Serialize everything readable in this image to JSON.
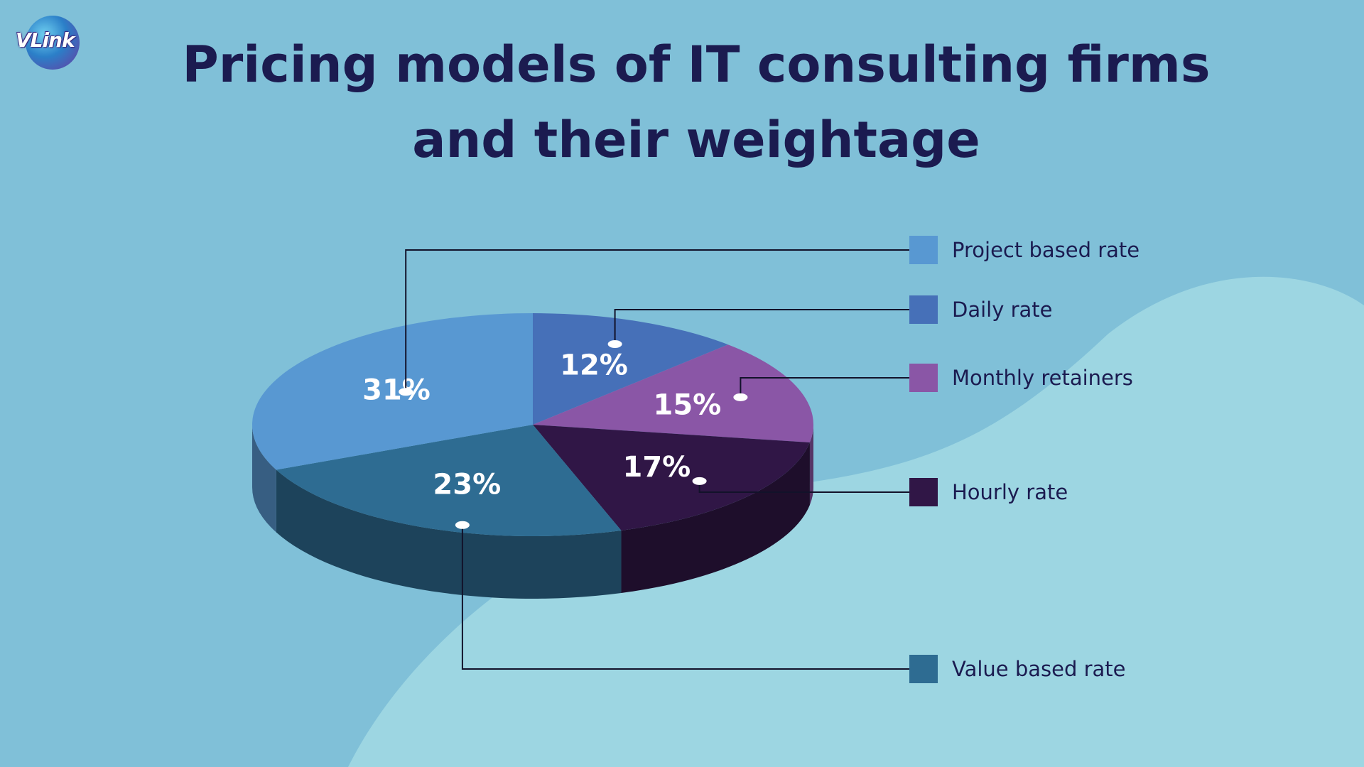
{
  "brand": {
    "logo_text": "VLink"
  },
  "title_lines": [
    "Pricing models of IT consulting firms",
    "and their weightage"
  ],
  "chart_data": {
    "type": "pie",
    "title": "Pricing models of IT consulting firms and their weightage",
    "legend_position": "right",
    "three_d": true,
    "slices": [
      {
        "label": "Daily rate",
        "value": 12,
        "display": "12%",
        "color": "#4670b8"
      },
      {
        "label": "Monthly retainers",
        "value": 15,
        "display": "15%",
        "color": "#8a56a6"
      },
      {
        "label": "Hourly rate",
        "value": 17,
        "display": "17%",
        "color": "#301646"
      },
      {
        "label": "Value based rate",
        "value": 23,
        "display": "23%",
        "color": "#2e6c92"
      },
      {
        "label": "Project based rate",
        "value": 31,
        "display": "31%",
        "color": "#5898d2"
      }
    ],
    "legend_order": [
      "Project based rate",
      "Daily rate",
      "Monthly retainers",
      "Hourly rate",
      "Value based rate"
    ]
  }
}
